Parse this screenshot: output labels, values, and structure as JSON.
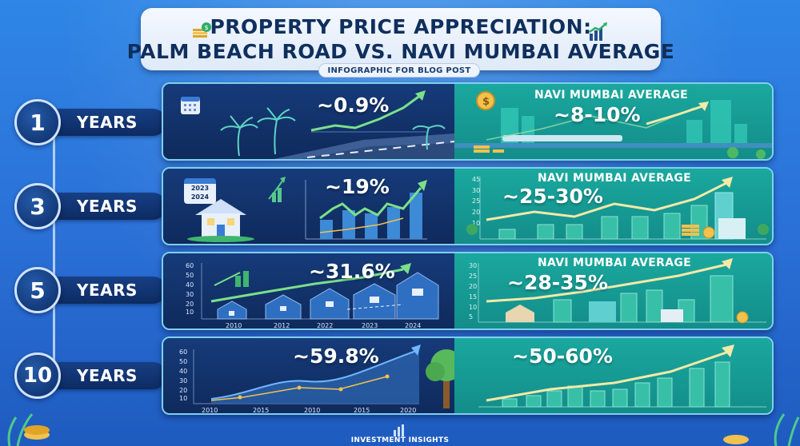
{
  "header": {
    "title_line1": "PROPERTY PRICE APPRECIATION:",
    "title_line2": "PALM BEACH ROAD VS. NAVI MUMBAI AVERAGE",
    "subtitle": "INFOGRAPHIC FOR BLOG POST"
  },
  "rows": [
    {
      "number": "1",
      "unit": "YEARS",
      "palm_beach_pct": "~0.9%",
      "navi_label": "NAVI MUMBAI AVERAGE",
      "navi_pct": "~8-10%"
    },
    {
      "number": "3",
      "unit": "YEARS",
      "palm_beach_pct": "~19%",
      "navi_label": "NAVI MUMBAI AVERAGE",
      "navi_pct": "~25-30%",
      "calendar_years": [
        "2023",
        "2024"
      ],
      "right_ticks": [
        "45",
        "30",
        "25",
        "20",
        "10"
      ]
    },
    {
      "number": "5",
      "unit": "YEARS",
      "palm_beach_pct": "~31.6%",
      "navi_label": "NAVI MUMBAI AVERAGE",
      "navi_pct": "~28-35%",
      "left_y_ticks": [
        "60",
        "50",
        "40",
        "30",
        "20",
        "10"
      ],
      "left_x_ticks": [
        "2010",
        "2012",
        "2022",
        "2023",
        "2024"
      ],
      "right_ticks": [
        "30",
        "25",
        "20",
        "15",
        "10",
        "5"
      ]
    },
    {
      "number": "10",
      "unit": "YEARS",
      "palm_beach_pct": "~59.8%",
      "navi_pct": "~50-60%",
      "left_y_ticks": [
        "60",
        "50",
        "40",
        "30",
        "20",
        "10"
      ],
      "left_x_ticks": [
        "2010",
        "2015",
        "2010",
        "2015",
        "2020"
      ]
    }
  ],
  "footer": {
    "label": "INVESTMENT INSIGHTS"
  },
  "colors": {
    "background": "#2a6fd6",
    "panel_left": "#0f2a5c",
    "panel_right": "#138d8a",
    "accent_green": "#7be08a",
    "accent_gold": "#f2c14e"
  }
}
